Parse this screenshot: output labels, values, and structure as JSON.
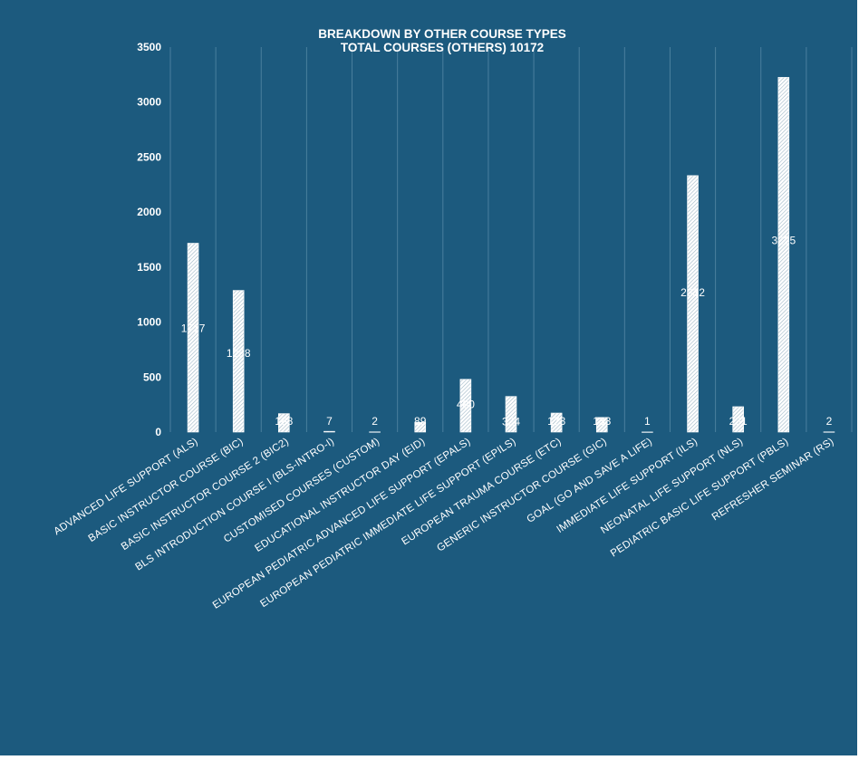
{
  "chart_data": {
    "type": "bar",
    "title": "BREAKDOWN BY OTHER COURSE TYPES",
    "subtitle": "TOTAL COURSES (OTHERS) 10172",
    "categories": [
      "ADVANCED LIFE SUPPORT (ALS)",
      "BASIC INSTRUCTOR COURSE (BIC)",
      "BASIC INSTRUCTOR COURSE 2 (BIC2)",
      "BLS INTRODUCTION COURSE I (BLS-INTRO-I)",
      "CUSTOMISED COURSES (CUSTOM)",
      "EDUCATIONAL INSTRUCTOR DAY (EID)",
      "EUROPEAN PEDIATRIC ADVANCED LIFE SUPPORT (EPALS)",
      "EUROPEAN PEDIATRIC IMMEDIATE LIFE SUPPORT (EPILS)",
      "EUROPEAN TRAUMA COURSE (ETC)",
      "GENERIC INSTRUCTOR COURSE (GIC)",
      "GOAL (GO AND SAVE A LIFE)",
      "IMMEDIATE LIFE SUPPORT (ILS)",
      "NEONATAL LIFE SUPPORT (NLS)",
      "PEDIATRIC BASIC LIFE SUPPORT (PBLS)",
      "REFRESHER SEMINAR (RS)"
    ],
    "values": [
      1717,
      1288,
      168,
      7,
      2,
      89,
      480,
      324,
      173,
      133,
      1,
      2332,
      231,
      3225,
      2
    ],
    "data_labels": [
      "1717",
      "1288",
      "168",
      "7",
      "2",
      "89",
      "480",
      "324",
      "173",
      "133",
      "1",
      "2332",
      "231",
      "3225",
      "2"
    ],
    "yticks": [
      "0",
      "500",
      "1000",
      "1500",
      "2000",
      "2500",
      "3000",
      "3500"
    ],
    "ylim": [
      0,
      3500
    ],
    "xlabel": "",
    "ylabel": "",
    "grid": "vertical",
    "legend": "none",
    "colors": {
      "background": "#1c5a7e",
      "bar": "#ffffff",
      "text": "#ffffff",
      "grid": "#4a7f9e"
    }
  }
}
